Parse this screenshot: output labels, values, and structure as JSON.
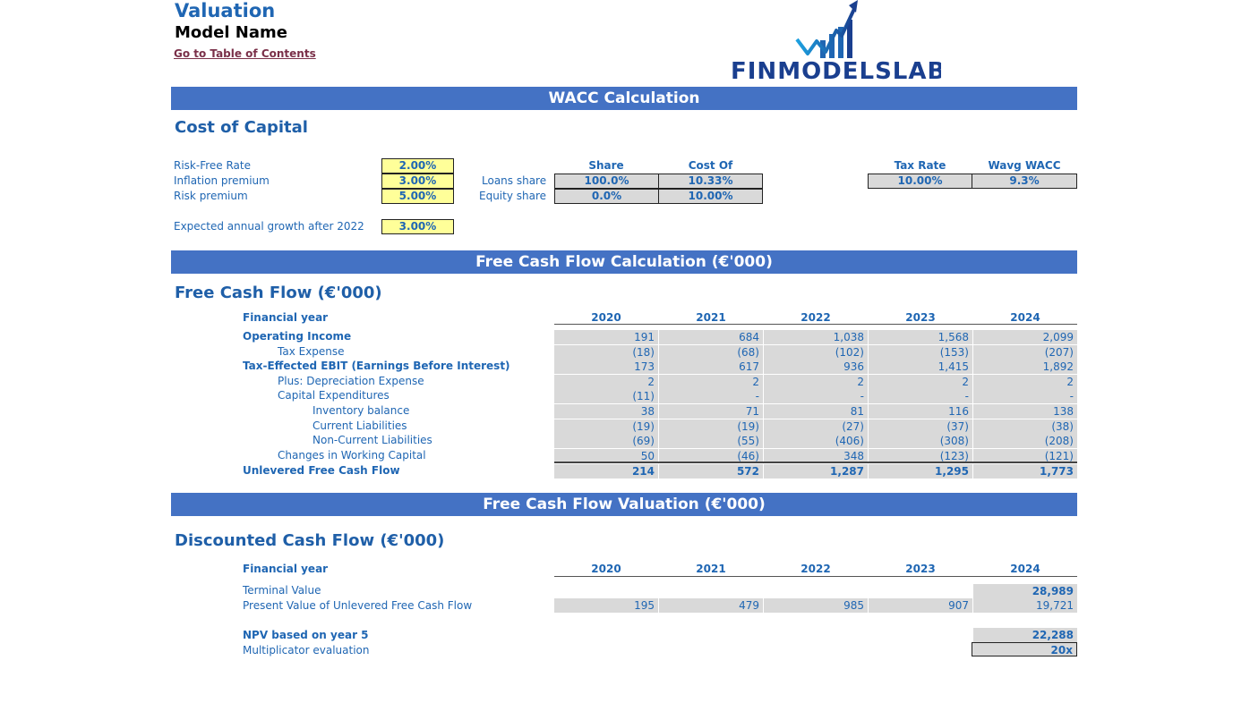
{
  "header": {
    "title": "Valuation",
    "model_name": "Model Name",
    "toc_link": "Go to Table of Contents",
    "logo_text": "FINMODELSLAB"
  },
  "bands": {
    "wacc": "WACC Calculation",
    "fcf": "Free Cash Flow Calculation (€'000)",
    "fcf_valuation": "Free Cash Flow Valuation (€'000)"
  },
  "cost_of_capital": {
    "title": "Cost of Capital",
    "risk_free_label": "Risk-Free Rate",
    "risk_free_value": "2.00%",
    "inflation_label": "Inflation premium",
    "inflation_value": "3.00%",
    "risk_premium_label": "Risk premium",
    "risk_premium_value": "5.00%",
    "growth_label": "Expected annual growth after 2022",
    "growth_value": "3.00%",
    "share_header": "Share",
    "cost_header": "Cost Of Resources",
    "loans_label": "Loans share",
    "loans_share": "100.0%",
    "loans_cost": "10.33%",
    "equity_label": "Equity share",
    "equity_share": "0.0%",
    "equity_cost": "10.00%",
    "tax_header": "Tax Rate",
    "wacc_header": "Wavg WACC",
    "tax_value": "10.00%",
    "wacc_value": "9.3%"
  },
  "fcf": {
    "title": "Free Cash Flow (€'000)",
    "year_label": "Financial year",
    "years": [
      "2020",
      "2021",
      "2022",
      "2023",
      "2024"
    ],
    "rows": [
      {
        "label": "Operating Income",
        "bold": true,
        "values": [
          "191",
          "684",
          "1,038",
          "1,568",
          "2,099"
        ]
      },
      {
        "label": "Tax Expense",
        "bold": false,
        "values": [
          "(18)",
          "(68)",
          "(102)",
          "(153)",
          "(207)"
        ]
      },
      {
        "label": "Tax-Effected EBIT (Earnings Before Interest)",
        "bold": true,
        "values": [
          "173",
          "617",
          "936",
          "1,415",
          "1,892"
        ]
      },
      {
        "label": "Plus: Depreciation Expense",
        "bold": false,
        "values": [
          "2",
          "2",
          "2",
          "2",
          "2"
        ]
      },
      {
        "label": "Capital Expenditures",
        "bold": false,
        "values": [
          "(11)",
          "-",
          "-",
          "-",
          "-"
        ]
      },
      {
        "label": "Inventory balance",
        "bold": false,
        "values": [
          "38",
          "71",
          "81",
          "116",
          "138"
        ]
      },
      {
        "label": "Current Liabilities",
        "bold": false,
        "values": [
          "(19)",
          "(19)",
          "(27)",
          "(37)",
          "(38)"
        ]
      },
      {
        "label": "Non-Current Liabilities",
        "bold": false,
        "values": [
          "(69)",
          "(55)",
          "(406)",
          "(308)",
          "(208)"
        ]
      },
      {
        "label": "Changes in Working Capital",
        "bold": false,
        "values": [
          "50",
          "(46)",
          "348",
          "(123)",
          "(121)"
        ]
      },
      {
        "label": "Unlevered Free Cash Flow",
        "bold": true,
        "values": [
          "214",
          "572",
          "1,287",
          "1,295",
          "1,773"
        ]
      }
    ]
  },
  "dcf": {
    "title": "Discounted Cash Flow (€'000)",
    "year_label": "Financial year",
    "years": [
      "2020",
      "2021",
      "2022",
      "2023",
      "2024"
    ],
    "terminal_label": "Terminal Value",
    "terminal_value": "28,989",
    "pv_label": "Present Value of Unlevered Free Cash Flow",
    "pv_values": [
      "195",
      "479",
      "985",
      "907",
      "19,721"
    ],
    "npv_label": "NPV based on year 5",
    "npv_value": "22,288",
    "multi_label": "Multiplicator evaluation",
    "multi_value": "20x"
  }
}
